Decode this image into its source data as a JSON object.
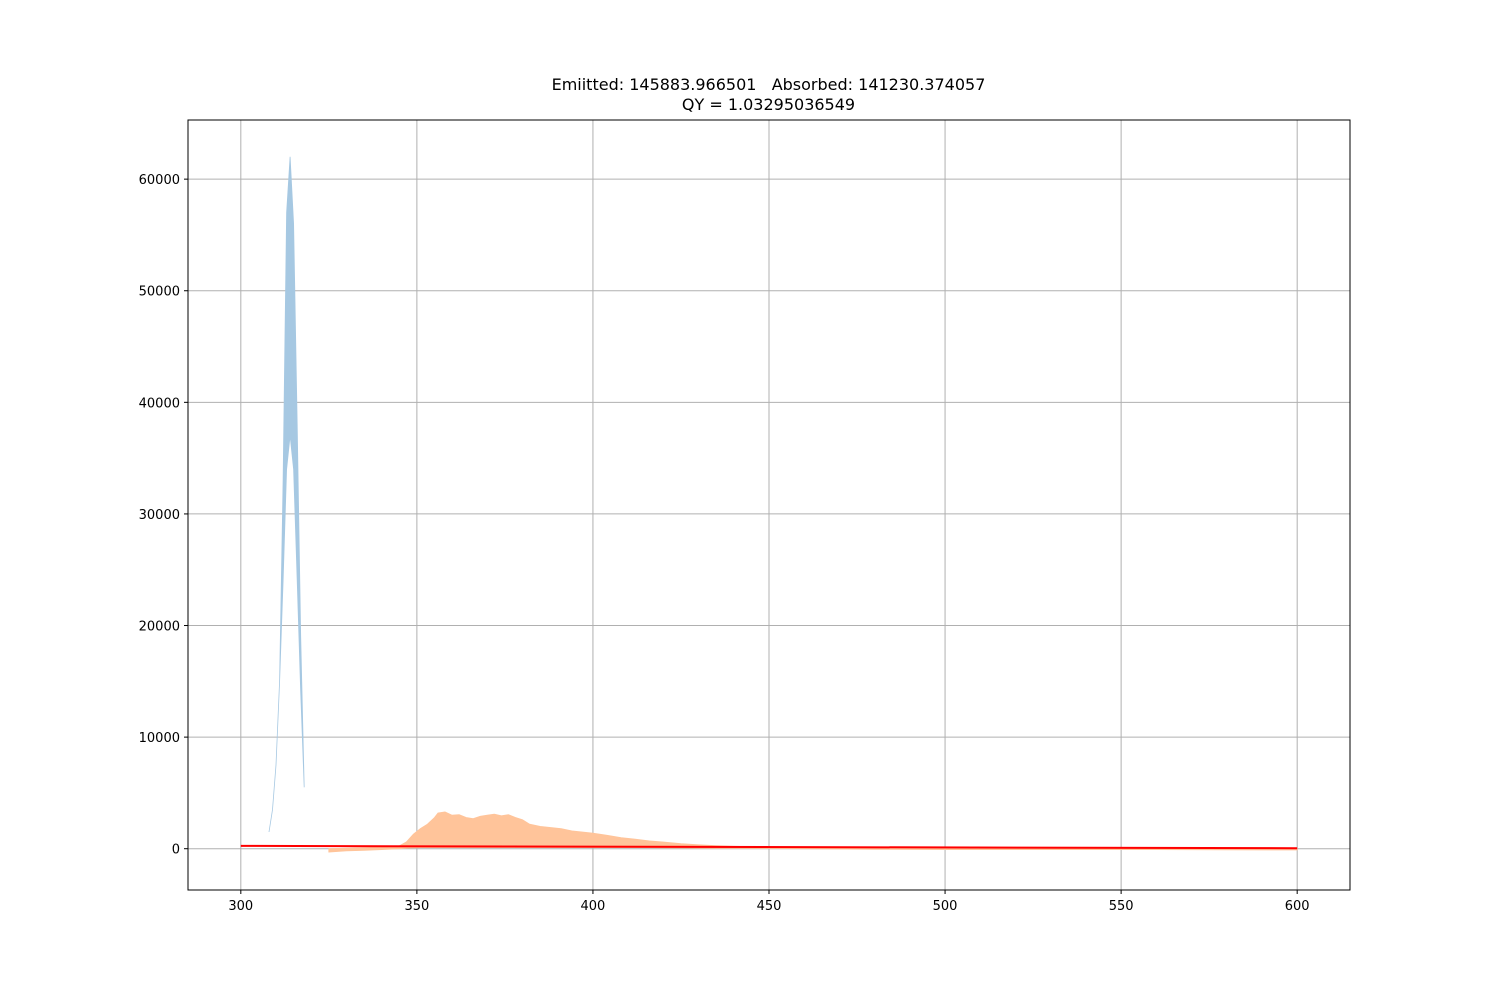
{
  "chart_data": {
    "type": "area",
    "title_line1": "Emiitted: 145883.966501   Absorbed: 141230.374057",
    "title_line2": "QY = 1.03295036549",
    "xlabel": "",
    "ylabel": "",
    "xlim": [
      285,
      615
    ],
    "ylim": [
      -3700,
      65300
    ],
    "grid": true,
    "x_ticks": [
      300,
      350,
      400,
      450,
      500,
      550,
      600
    ],
    "y_ticks": [
      0,
      10000,
      20000,
      30000,
      40000,
      50000,
      60000
    ],
    "colors": {
      "absorbed": "#a6c8e2",
      "emitted": "#ffc49a",
      "baseline": "#ff0000",
      "grid": "#b0b0b0"
    },
    "series": [
      {
        "key": "absorbed",
        "kind": "band",
        "x": [
          308,
          309,
          310,
          311,
          312,
          313,
          314,
          315,
          316,
          317,
          318
        ],
        "upper": [
          1500,
          3500,
          7500,
          15000,
          33000,
          57000,
          62000,
          56000,
          38000,
          19000,
          5500
        ],
        "lower": [
          1500,
          3500,
          7500,
          15000,
          24000,
          34000,
          37000,
          34000,
          24000,
          14000,
          5500
        ]
      },
      {
        "key": "emitted",
        "kind": "band",
        "x": [
          325,
          330,
          335,
          340,
          345,
          347,
          349,
          351,
          353,
          355,
          356,
          358,
          360,
          362,
          364,
          366,
          368,
          370,
          372,
          374,
          376,
          378,
          380,
          382,
          385,
          388,
          391,
          394,
          397,
          400,
          404,
          408,
          412,
          416,
          420,
          425,
          430,
          435,
          440,
          450,
          460,
          480,
          500,
          520,
          540,
          560,
          580,
          600
        ],
        "upper": [
          0,
          50,
          100,
          150,
          250,
          600,
          1300,
          1800,
          2200,
          2800,
          3200,
          3300,
          3000,
          3050,
          2800,
          2700,
          2900,
          3000,
          3100,
          2950,
          3050,
          2800,
          2600,
          2200,
          2000,
          1900,
          1800,
          1600,
          1500,
          1400,
          1200,
          1000,
          850,
          700,
          600,
          450,
          350,
          280,
          220,
          150,
          100,
          60,
          40,
          20,
          10,
          0,
          0,
          0
        ],
        "lower": [
          -300,
          -200,
          -150,
          -80,
          0,
          50,
          80,
          100,
          100,
          100,
          100,
          100,
          100,
          100,
          100,
          100,
          100,
          100,
          100,
          100,
          100,
          100,
          100,
          100,
          100,
          100,
          100,
          100,
          100,
          100,
          100,
          100,
          100,
          100,
          80,
          60,
          50,
          40,
          30,
          20,
          0,
          -50,
          -80,
          -80,
          -80,
          -80,
          -100,
          -120
        ]
      },
      {
        "key": "baseline",
        "kind": "line",
        "x": [
          300,
          600
        ],
        "y": [
          250,
          50
        ]
      }
    ]
  }
}
